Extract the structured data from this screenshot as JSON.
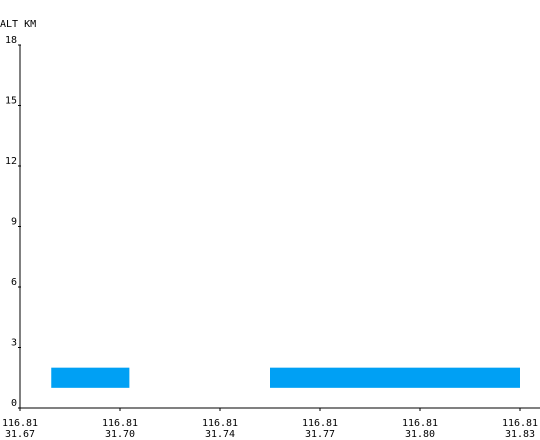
{
  "chart_data": {
    "type": "bar",
    "title": "",
    "ylabel": "ALT KM",
    "xlabel": "",
    "ylim": [
      0,
      18
    ],
    "y_ticks": [
      "18",
      "15",
      "12",
      "9",
      "6",
      "3",
      "0"
    ],
    "x_ticks": [
      {
        "line1": "116.81",
        "line2": "31.67"
      },
      {
        "line1": "116.81",
        "line2": "31.70"
      },
      {
        "line1": "116.81",
        "line2": "31.74"
      },
      {
        "line1": "116.81",
        "line2": "31.77"
      },
      {
        "line1": "116.81",
        "line2": "31.80"
      },
      {
        "line1": "116.81",
        "line2": "31.83"
      }
    ],
    "layers": [
      {
        "x_start": 31.68,
        "x_end": 31.705,
        "bottom": 1.0,
        "top": 2.0
      },
      {
        "x_start": 31.75,
        "x_end": 31.83,
        "bottom": 1.0,
        "top": 2.0
      }
    ],
    "color": "#00a0f4",
    "grid": false
  }
}
